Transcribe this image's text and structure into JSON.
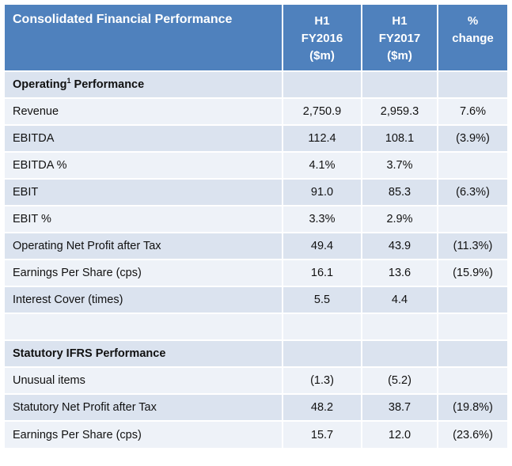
{
  "header": {
    "title": "Consolidated Financial Performance",
    "col1": [
      "H1",
      "FY2016",
      "($m)"
    ],
    "col2": [
      "H1",
      "FY2017",
      "($m)"
    ],
    "col3": [
      "%",
      "change"
    ]
  },
  "sections": {
    "operating": {
      "label_pre": "Operating",
      "footnote": "1",
      "label_post": " Performance"
    },
    "statutory": {
      "label": "Statutory IFRS Performance"
    }
  },
  "rows": {
    "revenue": {
      "label": "Revenue",
      "fy2016": "2,750.9",
      "fy2017": "2,959.3",
      "change": "7.6%"
    },
    "ebitda": {
      "label": "EBITDA",
      "fy2016": "112.4",
      "fy2017": "108.1",
      "change": "(3.9%)"
    },
    "ebitda_pct": {
      "label": "EBITDA %",
      "fy2016": "4.1%",
      "fy2017": "3.7%",
      "change": ""
    },
    "ebit": {
      "label": "EBIT",
      "fy2016": "91.0",
      "fy2017": "85.3",
      "change": "(6.3%)"
    },
    "ebit_pct": {
      "label": "EBIT %",
      "fy2016": "3.3%",
      "fy2017": "2.9%",
      "change": ""
    },
    "op_npat": {
      "label": "Operating Net Profit after Tax",
      "fy2016": "49.4",
      "fy2017": "43.9",
      "change": "(11.3%)"
    },
    "op_eps": {
      "label": "Earnings Per Share (cps)",
      "fy2016": "16.1",
      "fy2017": "13.6",
      "change": "(15.9%)"
    },
    "interest_cover": {
      "label": "Interest Cover (times)",
      "fy2016": "5.5",
      "fy2017": "4.4",
      "change": ""
    },
    "unusual": {
      "label": "Unusual items",
      "fy2016": "(1.3)",
      "fy2017": "(5.2)",
      "change": ""
    },
    "stat_npat": {
      "label": "Statutory Net Profit after Tax",
      "fy2016": "48.2",
      "fy2017": "38.7",
      "change": "(19.8%)"
    },
    "stat_eps": {
      "label": "Earnings Per Share (cps)",
      "fy2016": "15.7",
      "fy2017": "12.0",
      "change": "(23.6%)"
    }
  },
  "colors": {
    "header_bg": "#4f81bd",
    "row_dark": "#dbe3ef",
    "row_light": "#eef2f8"
  }
}
